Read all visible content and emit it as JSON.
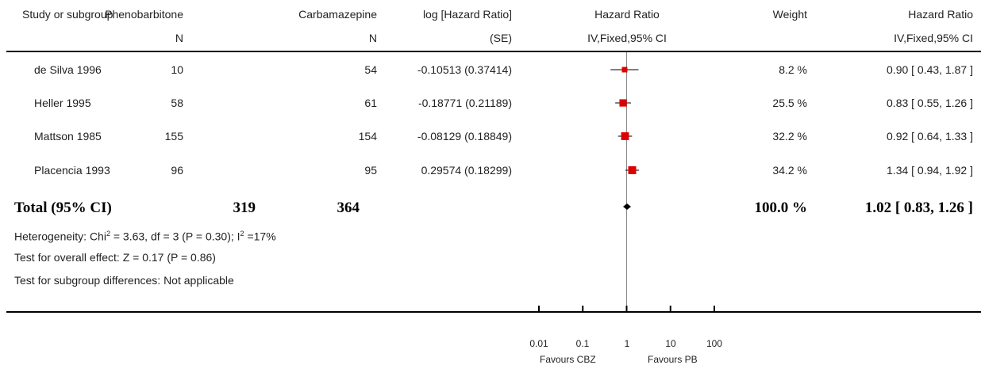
{
  "headers": {
    "study": "Study or subgroup",
    "pb": "Phenobarbitone",
    "pb_sub": "N",
    "cbz": "Carbamazepine",
    "cbz_sub": "N",
    "loghr": "log [Hazard Ratio]",
    "loghr_sub": "(SE)",
    "hr": "Hazard Ratio",
    "hr_sub": "IV,Fixed,95% CI",
    "weight": "Weight",
    "hr2": "Hazard Ratio",
    "hr2_sub": "IV,Fixed,95% CI"
  },
  "studies": [
    {
      "name": "de Silva 1996",
      "pb": "10",
      "cbz": "54",
      "loghr": "-0.10513 (0.37414)",
      "weight": "8.2 %",
      "ci": "0.90 [ 0.43, 1.87 ]"
    },
    {
      "name": "Heller 1995",
      "pb": "58",
      "cbz": "61",
      "loghr": "-0.18771 (0.21189)",
      "weight": "25.5 %",
      "ci": "0.83 [ 0.55, 1.26 ]"
    },
    {
      "name": "Mattson 1985",
      "pb": "155",
      "cbz": "154",
      "loghr": "-0.08129 (0.18849)",
      "weight": "32.2 %",
      "ci": "0.92 [ 0.64, 1.33 ]"
    },
    {
      "name": "Placencia 1993",
      "pb": "96",
      "cbz": "95",
      "loghr": "0.29574 (0.18299)",
      "weight": "34.2 %",
      "ci": "1.34 [ 0.94, 1.92 ]"
    }
  ],
  "total": {
    "name": "Total (95% CI)",
    "pb": "319",
    "cbz": "364",
    "weight": "100.0 %",
    "ci": "1.02 [ 0.83, 1.26 ]"
  },
  "notes": {
    "heterogeneity_pre": "Heterogeneity: Chi",
    "heterogeneity_mid": " = 3.63, df = 3 (P = 0.30); I",
    "heterogeneity_post": " =17%",
    "sup": "2",
    "overall": "Test for overall effect: Z = 0.17 (P = 0.86)",
    "subgroup": "Test for subgroup differences: Not applicable"
  },
  "chart_data": {
    "type": "forest",
    "x_scale": "log",
    "xlim": [
      0.01,
      100
    ],
    "ticks": [
      0.01,
      0.1,
      1,
      10,
      100
    ],
    "tick_labels": [
      "0.01",
      "0.1",
      "1",
      "10",
      "100"
    ],
    "favours_left": "Favours CBZ",
    "favours_right": "Favours PB",
    "points": [
      {
        "label": "de Silva 1996",
        "hr": 0.9,
        "lo": 0.43,
        "hi": 1.87,
        "weight": 8.2
      },
      {
        "label": "Heller 1995",
        "hr": 0.83,
        "lo": 0.55,
        "hi": 1.26,
        "weight": 25.5
      },
      {
        "label": "Mattson 1985",
        "hr": 0.92,
        "lo": 0.64,
        "hi": 1.33,
        "weight": 32.2
      },
      {
        "label": "Placencia 1993",
        "hr": 1.34,
        "lo": 0.94,
        "hi": 1.92,
        "weight": 34.2
      }
    ],
    "total": {
      "hr": 1.02,
      "lo": 0.83,
      "hi": 1.26
    },
    "marker_color": "#dd0000"
  }
}
